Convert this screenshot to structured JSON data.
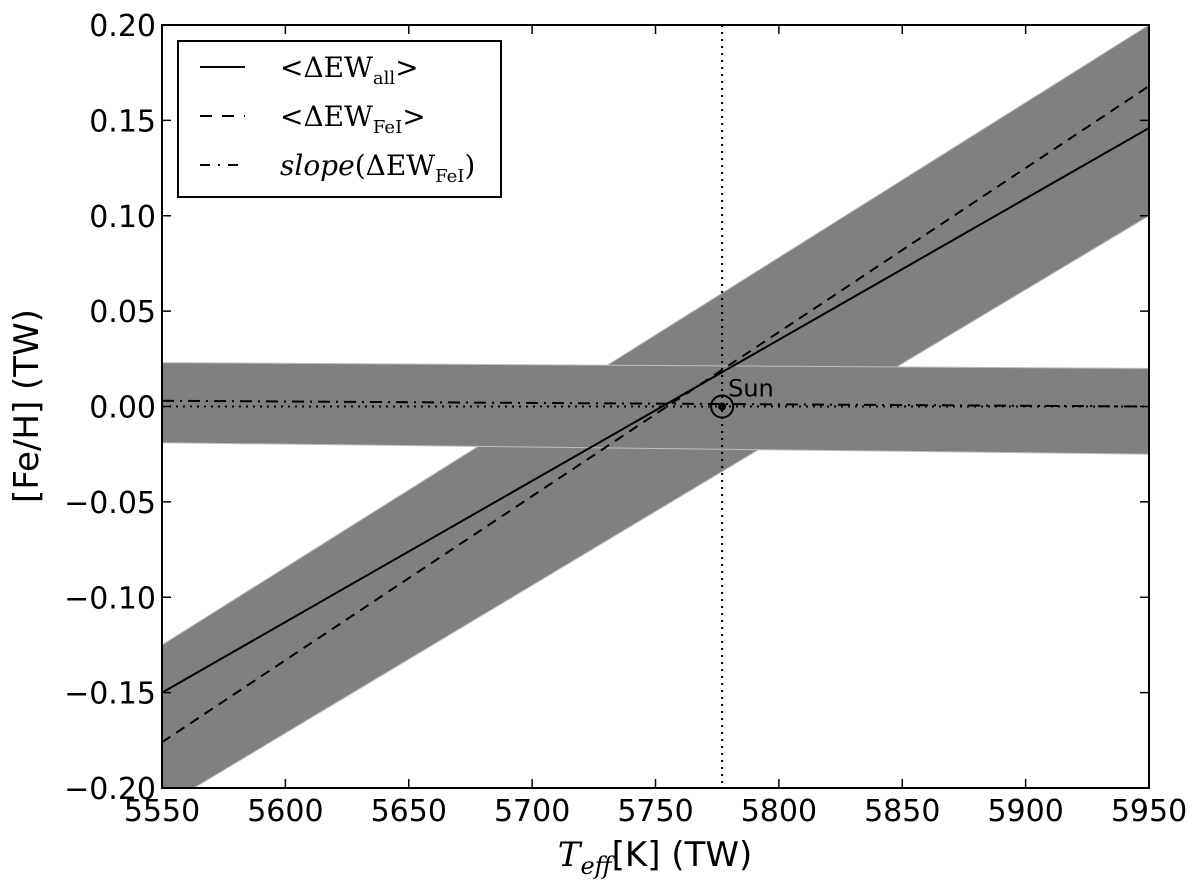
{
  "chart_data": {
    "type": "line",
    "xlabel": {
      "symbol": "T",
      "subscript": "eff",
      "rest": "[K] (TW)"
    },
    "ylabel": "[Fe/H] (TW)",
    "xlim": [
      5550,
      5950
    ],
    "ylim": [
      -0.2,
      0.2
    ],
    "xticks": [
      5550,
      5600,
      5650,
      5700,
      5750,
      5800,
      5850,
      5900,
      5950
    ],
    "xtick_labels": [
      "5550",
      "5600",
      "5650",
      "5700",
      "5750",
      "5800",
      "5850",
      "5900",
      "5950"
    ],
    "yticks": [
      -0.2,
      -0.15,
      -0.1,
      -0.05,
      0.0,
      0.05,
      0.1,
      0.15,
      0.2
    ],
    "ytick_labels": [
      "−0.20",
      "−0.15",
      "−0.10",
      "−0.05",
      "0.00",
      "0.05",
      "0.10",
      "0.15",
      "0.20"
    ],
    "grid": false,
    "legend_position": "top-left",
    "series": [
      {
        "name": "<ΔEW_all>",
        "label_main": "<ΔEW",
        "label_sub": "all",
        "label_end": ">",
        "style": "solid",
        "x": [
          5550,
          5950
        ],
        "y": [
          -0.15,
          0.146
        ]
      },
      {
        "name": "<ΔEW_FeI>",
        "label_main": "<ΔEW",
        "label_sub": "FeI",
        "label_end": ">",
        "style": "dashed",
        "x": [
          5550,
          5950
        ],
        "y": [
          -0.176,
          0.168
        ]
      },
      {
        "name": "slope(ΔEW_FeI)",
        "label_main": "slope",
        "label_mid": "(ΔEW",
        "label_sub": "FeI",
        "label_end": ")",
        "style": "dashdot",
        "x": [
          5550,
          5950
        ],
        "y": [
          0.003,
          0.0
        ]
      }
    ],
    "bands": [
      {
        "kind": "sloped",
        "x": [
          5550,
          5950
        ],
        "y_low": [
          -0.21,
          0.1
        ],
        "y_high": [
          -0.125,
          0.2
        ]
      },
      {
        "kind": "flat",
        "x": [
          5550,
          5950
        ],
        "y_low": [
          -0.019,
          -0.025
        ],
        "y_high": [
          0.023,
          0.02
        ]
      }
    ],
    "reference": {
      "vline_x": 5777,
      "hline_y": 0.0,
      "sun": {
        "x": 5777,
        "y": 0.0,
        "label": "Sun"
      }
    }
  },
  "colors": {
    "band": "#808080",
    "band_edge": "#bdbdbd",
    "line": "#000000"
  }
}
